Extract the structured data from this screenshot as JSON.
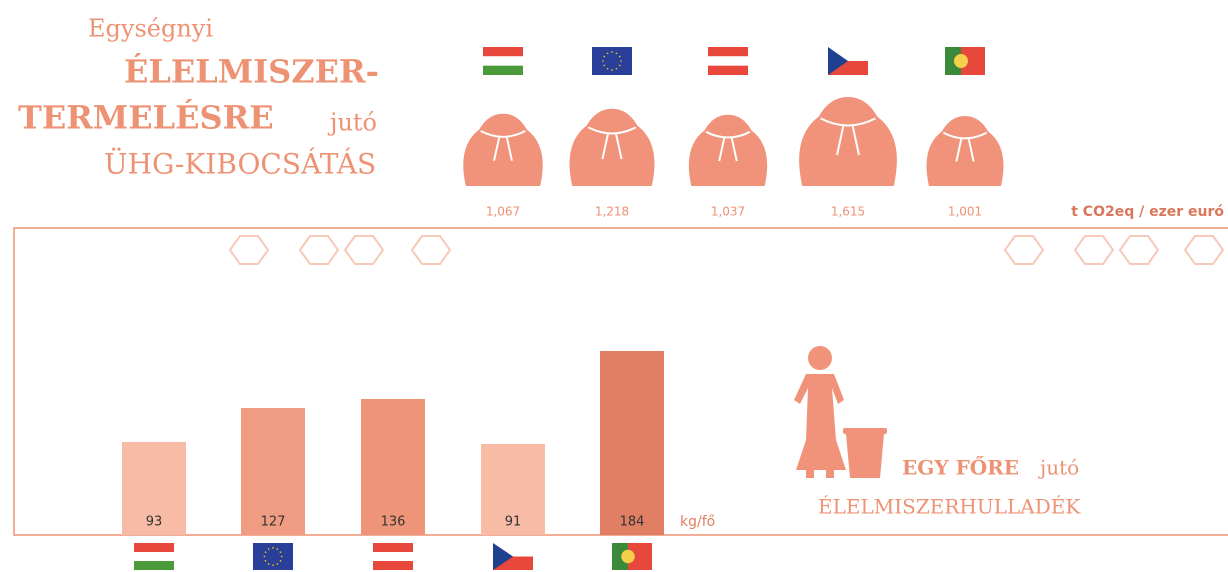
{
  "chart_data": [
    {
      "type": "pictograph",
      "title": [
        "Egységnyi",
        "ÉLELMISZER-",
        "TERMELÉSRE",
        "jutó",
        "ÜHG-KIBOCSÁTÁS"
      ],
      "categories": [
        null,
        null,
        null,
        null,
        null
      ],
      "values": [
        1.067,
        1.218,
        1.037,
        1.615,
        1.001
      ],
      "value_labels": [
        "1,067",
        "1,218",
        "1,037",
        "1,615",
        "1,001"
      ],
      "unit": "t CO2eq / ezer euró",
      "color": "#f0937a"
    },
    {
      "type": "bar",
      "title": [
        "EGY FŐRE",
        "jutó",
        "ÉLELMISZERHULLADÉK"
      ],
      "categories": [
        null,
        null,
        null,
        null,
        null
      ],
      "values": [
        93,
        127,
        136,
        91,
        184
      ],
      "colors": [
        "#f7bba6",
        "#f09c82",
        "#ee9579",
        "#f7bba6",
        "#e07f63"
      ],
      "unit": "kg/fő"
    }
  ]
}
